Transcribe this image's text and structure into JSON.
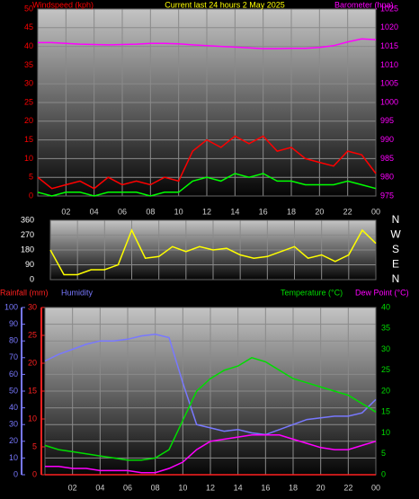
{
  "chart_data": [
    {
      "type": "line",
      "title": "Current last 24 hours 2 May 2025",
      "ylabel": "Windspeed (kph)",
      "y2label": "Barometer (hpa)",
      "x": [
        0,
        1,
        2,
        3,
        4,
        5,
        6,
        7,
        8,
        9,
        10,
        11,
        12,
        13,
        14,
        15,
        16,
        17,
        18,
        19,
        20,
        21,
        22,
        23,
        24
      ],
      "xlim": [
        0,
        24
      ],
      "xticks": [
        {
          "value": 2,
          "label": "02"
        },
        {
          "value": 4,
          "label": "04"
        },
        {
          "value": 6,
          "label": "06"
        },
        {
          "value": 8,
          "label": "08"
        },
        10,
        12,
        14,
        16,
        18,
        20,
        22,
        {
          "value": 24,
          "label": "00"
        }
      ],
      "ylim": [
        0,
        50
      ],
      "yticks": [
        0,
        5,
        10,
        15,
        20,
        25,
        30,
        35,
        40,
        45,
        50
      ],
      "y2lim": [
        975,
        1025
      ],
      "y2ticks": [
        975,
        980,
        985,
        990,
        995,
        1000,
        1005,
        1010,
        1015,
        1020,
        1025
      ],
      "grid": true,
      "series": [
        {
          "color": "#ff0000",
          "values": [
            5,
            2,
            3,
            4,
            2,
            5,
            3,
            4,
            3,
            5,
            4,
            12,
            15,
            13,
            16,
            14,
            16,
            12,
            13,
            10,
            9,
            8,
            12,
            11,
            6
          ]
        },
        {
          "color": "#00ff00",
          "values": [
            1,
            0,
            1,
            1,
            0,
            1,
            1,
            1,
            0,
            1,
            1,
            4,
            5,
            4,
            6,
            5,
            6,
            4,
            4,
            3,
            3,
            3,
            4,
            3,
            2
          ]
        },
        {
          "color": "#ff00ff",
          "axis": "y2",
          "values": [
            1016,
            1016,
            1015.8,
            1015.6,
            1015.5,
            1015.4,
            1015.5,
            1015.6,
            1015.8,
            1015.8,
            1015.7,
            1015.4,
            1015.2,
            1015,
            1014.8,
            1014.6,
            1014.4,
            1014.4,
            1014.5,
            1014.5,
            1014.7,
            1015.2,
            1016.2,
            1017,
            1016.8
          ]
        }
      ]
    },
    {
      "type": "line",
      "x": [
        0,
        1,
        2,
        3,
        4,
        5,
        6,
        7,
        8,
        9,
        10,
        11,
        12,
        13,
        14,
        15,
        16,
        17,
        18,
        19,
        20,
        21,
        22,
        23,
        24
      ],
      "xlim": [
        0,
        24
      ],
      "xticks": [
        2,
        4,
        6,
        8,
        10,
        12,
        14,
        16,
        18,
        20,
        22,
        24
      ],
      "ylim": [
        0,
        360
      ],
      "yticks": [
        0,
        90,
        180,
        270,
        360
      ],
      "y2lim": [
        0,
        360
      ],
      "y2ticks": [
        {
          "value": 360,
          "label": "N"
        },
        {
          "value": 270,
          "label": "W"
        },
        {
          "value": 180,
          "label": "S"
        },
        {
          "value": 90,
          "label": "E"
        },
        {
          "value": 0,
          "label": "N"
        }
      ],
      "grid": true,
      "series": [
        {
          "color": "#ffff00",
          "values": [
            180,
            30,
            30,
            60,
            60,
            90,
            300,
            130,
            140,
            200,
            170,
            200,
            180,
            190,
            150,
            130,
            140,
            170,
            200,
            130,
            150,
            110,
            150,
            300,
            220
          ]
        }
      ]
    },
    {
      "type": "line",
      "x": [
        0,
        1,
        2,
        3,
        4,
        5,
        6,
        7,
        8,
        9,
        10,
        11,
        12,
        13,
        14,
        15,
        16,
        17,
        18,
        19,
        20,
        21,
        22,
        23,
        24
      ],
      "xlim": [
        0,
        24
      ],
      "xticks": [
        {
          "value": 2,
          "label": "02"
        },
        {
          "value": 4,
          "label": "04"
        },
        {
          "value": 6,
          "label": "06"
        },
        {
          "value": 8,
          "label": "08"
        },
        10,
        12,
        14,
        16,
        18,
        20,
        22,
        {
          "value": 24,
          "label": "00"
        }
      ],
      "ylim": [
        0,
        100
      ],
      "yticks": [
        0,
        10,
        20,
        30,
        40,
        50,
        60,
        70,
        80,
        90,
        100
      ],
      "y3lim": [
        0,
        30
      ],
      "y3ticks": [
        0,
        5,
        10,
        15,
        20,
        25,
        30
      ],
      "y2lim": [
        0,
        40
      ],
      "y2ticks": [
        0,
        5,
        10,
        15,
        20,
        25,
        30,
        35,
        40
      ],
      "grid": true,
      "series": [
        {
          "name": "Rainfall (mm)",
          "color": "#ff2020",
          "axis": "y3",
          "values": [
            0,
            0,
            0,
            0,
            0,
            0,
            0,
            0,
            0,
            0,
            0,
            0,
            0,
            0,
            0,
            0,
            0,
            0,
            0,
            0,
            0,
            0,
            0,
            0,
            0
          ]
        },
        {
          "name": "Humidity",
          "color": "#7878ff",
          "values": [
            68,
            72,
            75,
            78,
            80,
            80,
            81,
            83,
            84,
            82,
            55,
            30,
            28,
            26,
            27,
            25,
            24,
            27,
            30,
            33,
            34,
            35,
            35,
            37,
            45
          ]
        },
        {
          "name": "Temperature (°C)",
          "color": "#00dd00",
          "axis": "y2",
          "values": [
            7,
            6,
            5.5,
            5,
            4.5,
            4,
            3.5,
            3.5,
            4,
            6,
            13,
            20,
            23,
            25,
            26,
            28,
            27,
            25,
            23,
            22,
            21,
            20,
            19,
            17,
            15
          ]
        },
        {
          "name": "Dew Point (°C)",
          "color": "#ff00ff",
          "axis": "y2",
          "values": [
            2,
            2,
            1.5,
            1.5,
            1,
            1,
            1,
            0.5,
            0.5,
            1.5,
            3,
            6,
            8,
            8.5,
            9,
            9.5,
            9.5,
            9.5,
            8.5,
            7.5,
            6.5,
            6,
            6,
            7,
            8
          ]
        }
      ]
    }
  ]
}
